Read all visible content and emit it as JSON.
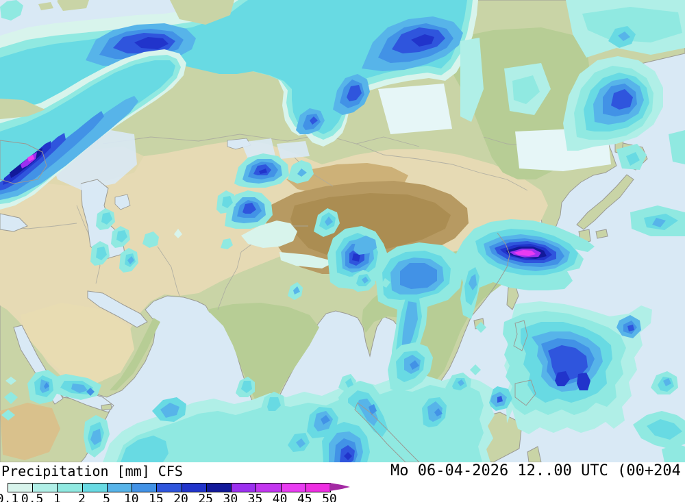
{
  "legend": {
    "title": "Precipitation [mm] CFS",
    "labels": [
      "0.1",
      "0.5",
      "1",
      "2",
      "5",
      "10",
      "15",
      "20",
      "25",
      "30",
      "35",
      "40",
      "45",
      "50"
    ],
    "colors": [
      "#d8f4ec",
      "#b0efe7",
      "#90e9e1",
      "#68dae3",
      "#57b4e9",
      "#4292e6",
      "#2f55dd",
      "#2134cb",
      "#12199a",
      "#9c30f0",
      "#c336f0",
      "#e93cf2",
      "#ee2ee2"
    ],
    "arrow_color": "#a329a3"
  },
  "footer": {
    "datetime": "Mo 06-04-2026 12..00 UTC (00+204"
  },
  "map": {
    "colors": {
      "sea": "#d9e9f5",
      "palecyan": "#e6f6f7",
      "land": "#c9d4a6",
      "land_tan": "#e6dab4",
      "land_sand": "#e8dcb2",
      "land_brown": "#b79a62",
      "land_brown_dark": "#ab8d52",
      "land_tarim": "#cdb178",
      "land_green_dark": "#b7cd95",
      "steppe": "#e0d8ae",
      "africa_tan": "#d9c18c",
      "coast": "#9a9a94",
      "border": "#a9a9a0"
    }
  }
}
